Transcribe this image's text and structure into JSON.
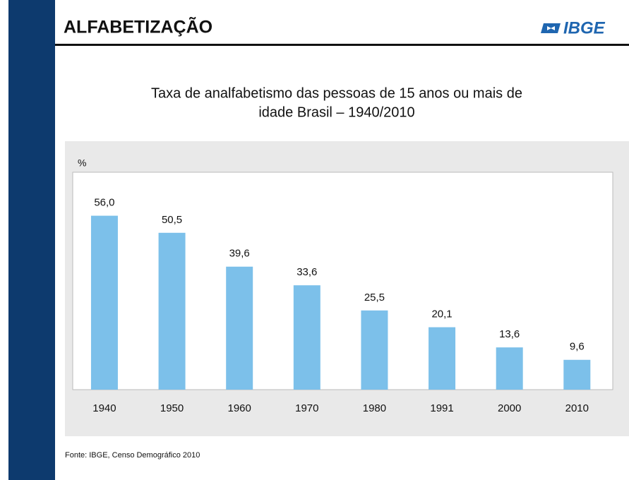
{
  "header": {
    "title": "ALFABETIZAÇÃO",
    "logo": "IBGE"
  },
  "chart_data": {
    "type": "bar",
    "title": [
      "Taxa de analfabetismo das pessoas de 15 anos ou mais de",
      "idade Brasil – 1940/2010"
    ],
    "y_label": "%",
    "categories": [
      "1940",
      "1950",
      "1960",
      "1970",
      "1980",
      "1991",
      "2000",
      "2010"
    ],
    "values": [
      56.0,
      50.5,
      39.6,
      33.6,
      25.5,
      20.1,
      13.6,
      9.6
    ],
    "value_labels": [
      "56,0",
      "50,5",
      "39,6",
      "33,6",
      "25,5",
      "20,1",
      "13,6",
      "9,6"
    ],
    "color": "#7cc0ea",
    "ylim": [
      0,
      70
    ]
  },
  "source": "Fonte: IBGE, Censo Demográfico 2010"
}
